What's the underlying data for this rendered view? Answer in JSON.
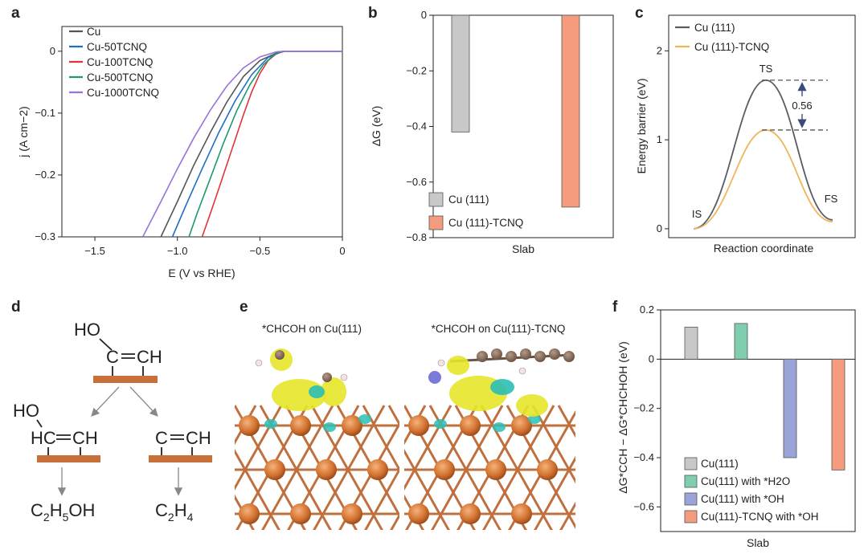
{
  "panels": {
    "a": "a",
    "b": "b",
    "c": "c",
    "d": "d",
    "e": "e",
    "f": "f"
  },
  "colors": {
    "cu": "#555555",
    "tcnq50": "#1f6fc6",
    "tcnq100": "#e0343c",
    "tcnq500": "#1c9a6c",
    "tcnq1000": "#9a72d9",
    "bar_cu111": "#c8c8c8",
    "bar_tcnq": "#f59c7e",
    "bar_h2o": "#7fcfae",
    "bar_oh": "#9aa4d6",
    "line_cu111": "#5b5b66",
    "line_tcnq": "#f0b55a",
    "copper": "#c8703a"
  },
  "panel_d": {
    "ho_top": "HO",
    "ch_top": "CH",
    "c_top": "C",
    "ho_left": "HO",
    "hc_left": "HC",
    "ch_left": "CH",
    "c_right": "C",
    "ch_right": "CH",
    "product_left_main": "C",
    "product_left_sub1": "2",
    "product_left_mid": "H",
    "product_left_sub2": "5",
    "product_left_end": "OH",
    "product_right_main": "C",
    "product_right_sub1": "2",
    "product_right_mid": "H",
    "product_right_sub2": "4"
  },
  "panel_e": {
    "label_left": "*CHCOH on Cu(111)",
    "label_right": "*CHCOH on Cu(111)-TCNQ"
  },
  "chart_data": [
    {
      "panel": "a",
      "type": "line",
      "xlabel": "E (V vs RHE)",
      "ylabel": "j (A cm−2)",
      "xlim": [
        -1.7,
        0
      ],
      "ylim": [
        -0.3,
        0.04
      ],
      "xticks": [
        "−1.5",
        "−1.0",
        "−0.5",
        "0"
      ],
      "xtick_values": [
        -1.5,
        -1.0,
        -0.5,
        0
      ],
      "yticks": [
        "0",
        "−0.1",
        "−0.2",
        "−0.3"
      ],
      "ytick_values": [
        0,
        -0.1,
        -0.2,
        -0.3
      ],
      "legend": "top-left",
      "series": [
        {
          "name": "Cu",
          "points": [
            [
              -1.1,
              -0.3
            ],
            [
              -1.0,
              -0.243
            ],
            [
              -0.9,
              -0.184
            ],
            [
              -0.8,
              -0.131
            ],
            [
              -0.7,
              -0.082
            ],
            [
              -0.6,
              -0.041
            ],
            [
              -0.5,
              -0.015
            ],
            [
              -0.4,
              -0.003
            ],
            [
              -0.35,
              0
            ],
            [
              0,
              0
            ]
          ]
        },
        {
          "name": "Cu-50TCNQ",
          "points": [
            [
              -1.03,
              -0.3
            ],
            [
              -0.95,
              -0.25
            ],
            [
              -0.85,
              -0.19
            ],
            [
              -0.75,
              -0.132
            ],
            [
              -0.65,
              -0.08
            ],
            [
              -0.55,
              -0.038
            ],
            [
              -0.45,
              -0.01
            ],
            [
              -0.38,
              -0.001
            ],
            [
              -0.35,
              0
            ],
            [
              0,
              0
            ]
          ]
        },
        {
          "name": "Cu-100TCNQ",
          "points": [
            [
              -0.85,
              -0.3
            ],
            [
              -0.8,
              -0.262
            ],
            [
              -0.75,
              -0.223
            ],
            [
              -0.7,
              -0.183
            ],
            [
              -0.65,
              -0.143
            ],
            [
              -0.6,
              -0.103
            ],
            [
              -0.55,
              -0.066
            ],
            [
              -0.5,
              -0.036
            ],
            [
              -0.45,
              -0.015
            ],
            [
              -0.4,
              -0.004
            ],
            [
              -0.35,
              0
            ],
            [
              0,
              0
            ]
          ]
        },
        {
          "name": "Cu-500TCNQ",
          "points": [
            [
              -0.93,
              -0.3
            ],
            [
              -0.88,
              -0.262
            ],
            [
              -0.8,
              -0.205
            ],
            [
              -0.72,
              -0.148
            ],
            [
              -0.64,
              -0.096
            ],
            [
              -0.56,
              -0.054
            ],
            [
              -0.48,
              -0.022
            ],
            [
              -0.42,
              -0.007
            ],
            [
              -0.36,
              0
            ],
            [
              0,
              0
            ]
          ]
        },
        {
          "name": "Cu-1000TCNQ",
          "points": [
            [
              -1.21,
              -0.3
            ],
            [
              -1.1,
              -0.243
            ],
            [
              -1.0,
              -0.19
            ],
            [
              -0.9,
              -0.14
            ],
            [
              -0.8,
              -0.095
            ],
            [
              -0.7,
              -0.056
            ],
            [
              -0.6,
              -0.027
            ],
            [
              -0.5,
              -0.009
            ],
            [
              -0.4,
              -0.001
            ],
            [
              -0.35,
              0
            ],
            [
              0,
              0
            ]
          ]
        }
      ]
    },
    {
      "panel": "b",
      "type": "bar",
      "xlabel": "Slab",
      "ylabel": "ΔG (eV)",
      "ylim": [
        -0.8,
        0
      ],
      "yticks": [
        "0",
        "−0.2",
        "−0.4",
        "−0.6",
        "−0.8"
      ],
      "ytick_values": [
        0,
        -0.2,
        -0.4,
        -0.6,
        -0.8
      ],
      "legend": "bottom-left",
      "series": [
        {
          "name": "Cu (111)",
          "values": [
            -0.42
          ]
        },
        {
          "name": "Cu (111)-TCNQ",
          "values": [
            -0.69
          ]
        }
      ]
    },
    {
      "panel": "c",
      "type": "line",
      "xlabel": "Reaction coordinate",
      "ylabel": "Energy barrier (eV)",
      "ylim": [
        -0.1,
        2.4
      ],
      "yticks": [
        "0",
        "1",
        "2"
      ],
      "ytick_values": [
        0,
        1,
        2
      ],
      "legend": "top-left",
      "state_labels": [
        "IS",
        "TS",
        "FS"
      ],
      "annotation": "0.56",
      "series": [
        {
          "name": "Cu (111)",
          "values": [
            0,
            1.67,
            0.1
          ]
        },
        {
          "name": "Cu (111)-TCNQ",
          "values": [
            0,
            1.11,
            0.08
          ]
        }
      ]
    },
    {
      "panel": "f",
      "type": "bar",
      "xlabel": "Slab",
      "ylabel": "ΔG*CCH − ΔG*CHCHOH (eV)",
      "ylim": [
        -0.7,
        0.2
      ],
      "yticks": [
        "0.2",
        "0",
        "−0.2",
        "−0.4",
        "−0.6"
      ],
      "ytick_values": [
        0.2,
        0,
        -0.2,
        -0.4,
        -0.6
      ],
      "legend": "bottom-left",
      "series": [
        {
          "name": "Cu(111)",
          "values": [
            0.13
          ]
        },
        {
          "name": "Cu(111) with *H2O",
          "values": [
            0.145
          ]
        },
        {
          "name": "Cu(111) with *OH",
          "values": [
            -0.4
          ]
        },
        {
          "name": "Cu(111)-TCNQ with *OH",
          "values": [
            -0.45
          ]
        }
      ]
    }
  ]
}
